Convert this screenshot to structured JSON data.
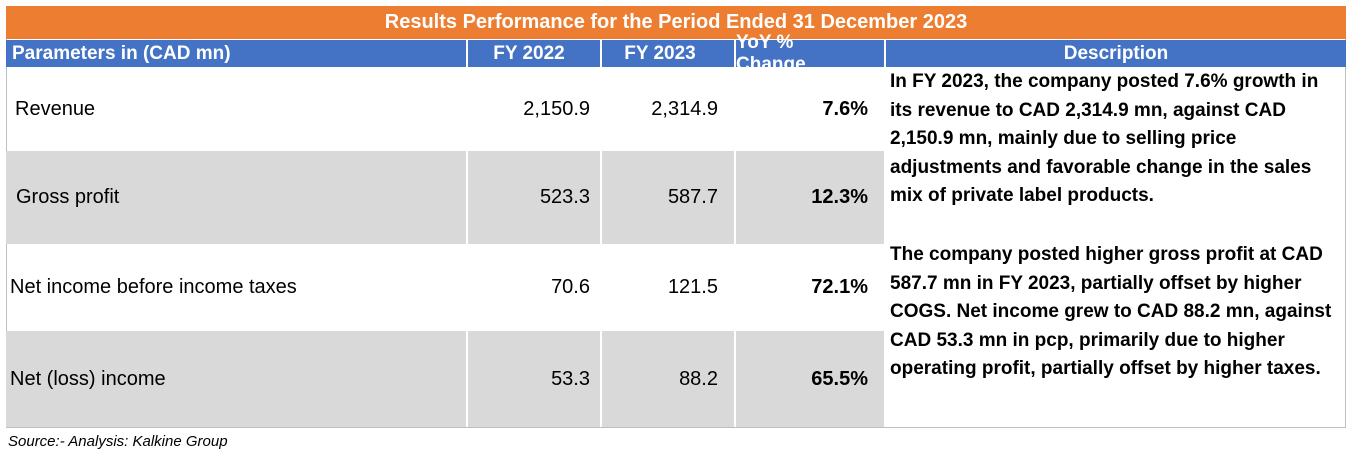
{
  "title": "Results Performance for the Period Ended 31 December 2023",
  "header": {
    "parameters": "Parameters in (CAD mn)",
    "fy2022": "FY 2022",
    "fy2023": "FY 2023",
    "yoy": "YoY % Change",
    "description": "Description"
  },
  "rows": [
    {
      "label": "Revenue",
      "fy2022": "2,150.9",
      "fy2023": "2,314.9",
      "yoy": "7.6%"
    },
    {
      "label": "Gross profit",
      "fy2022": "523.3",
      "fy2023": "587.7",
      "yoy": "12.3%"
    },
    {
      "label": "Net income before income taxes",
      "fy2022": "70.6",
      "fy2023": "121.5",
      "yoy": "72.1%"
    },
    {
      "label": "Net (loss) income",
      "fy2022": "53.3",
      "fy2023": "88.2",
      "yoy": "65.5%"
    }
  ],
  "descriptions": [
    "In FY 2023, the company posted 7.6% growth in its revenue to CAD 2,314.9 mn, against CAD 2,150.9 mn, mainly due to selling price adjustments and favorable change in the sales mix of private label products.",
    "The company posted higher gross profit at CAD 587.7 mn in FY 2023, partially offset by higher COGS. Net income grew to CAD 88.2 mn, against CAD 53.3 mn in pcp, primarily due to higher operating profit, partially offset by higher taxes."
  ],
  "source": "Source:- Analysis: Kalkine Group",
  "colors": {
    "title_bg": "#ed7d31",
    "header_bg": "#4472c4",
    "shade_bg": "#d9d9d9"
  }
}
